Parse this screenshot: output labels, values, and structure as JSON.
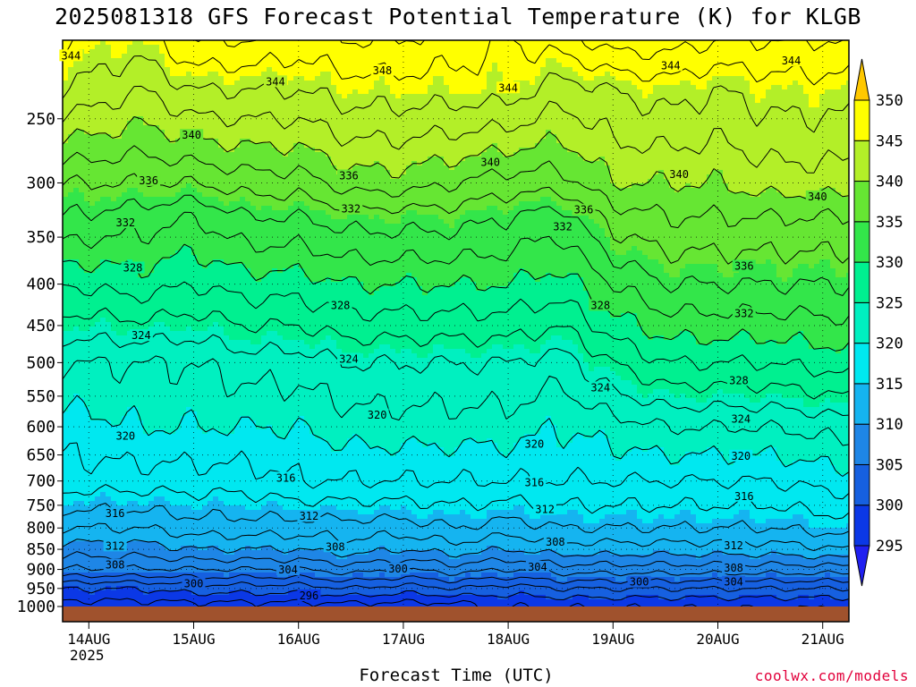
{
  "title": "2025081318 GFS Forecast Potential Temperature (K) for KLGB",
  "x_axis_title": "Forecast Time (UTC)",
  "credit": "coolwx.com/models",
  "chart_data": {
    "type": "heatmap",
    "title": "2025081318 GFS Forecast Potential Temperature (K) for KLGB",
    "xlabel": "Forecast Time (UTC)",
    "ylabel": "",
    "x_ticks": [
      {
        "label": "14AUG",
        "sub": "2025",
        "day": 0
      },
      {
        "label": "15AUG",
        "sub": "",
        "day": 1
      },
      {
        "label": "16AUG",
        "sub": "",
        "day": 2
      },
      {
        "label": "17AUG",
        "sub": "",
        "day": 3
      },
      {
        "label": "18AUG",
        "sub": "",
        "day": 4
      },
      {
        "label": "19AUG",
        "sub": "",
        "day": 5
      },
      {
        "label": "20AUG",
        "sub": "",
        "day": 6
      },
      {
        "label": "21AUG",
        "sub": "",
        "day": 7
      }
    ],
    "xlim_days": [
      -0.25,
      7.25
    ],
    "y_ticks": [
      250,
      300,
      350,
      400,
      450,
      500,
      550,
      600,
      650,
      700,
      750,
      800,
      850,
      900,
      950,
      1000
    ],
    "ylim": [
      200,
      1000
    ],
    "y_scale": "log-pressure",
    "colorbar": {
      "levels": [
        295,
        300,
        305,
        310,
        315,
        320,
        325,
        330,
        335,
        340,
        345,
        350
      ],
      "colors": [
        "#2020f0",
        "#0b38e6",
        "#1660e0",
        "#1e86e6",
        "#15b4f0",
        "#00e8f0",
        "#00f0c0",
        "#00f090",
        "#33e64a",
        "#66e633",
        "#b3ef28",
        "#ffff00",
        "#ffc800"
      ]
    },
    "isotherm_interval": 2,
    "profiles": [
      {
        "day": -0.25,
        "p": [
          200,
          230,
          300,
          330,
          400,
          500,
          600,
          700,
          800,
          850,
          900,
          950,
          1000
        ],
        "theta": [
          346,
          344,
          336,
          334,
          328,
          322,
          319,
          317,
          312,
          309,
          306,
          300,
          297
        ]
      },
      {
        "day": 0.5,
        "p": [
          200,
          230,
          300,
          330,
          400,
          500,
          600,
          700,
          800,
          850,
          900,
          950,
          1000
        ],
        "theta": [
          345,
          342,
          336,
          333,
          329,
          322,
          320,
          317,
          312,
          309,
          306,
          300,
          297
        ]
      },
      {
        "day": 1,
        "p": [
          200,
          230,
          300,
          330,
          400,
          500,
          600,
          700,
          800,
          850,
          900,
          950,
          1000
        ],
        "theta": [
          348,
          344,
          336,
          332,
          328,
          322,
          320,
          317,
          313,
          310,
          306,
          301,
          297
        ]
      },
      {
        "day": 1.5,
        "p": [
          200,
          230,
          300,
          330,
          400,
          500,
          600,
          700,
          800,
          850,
          900,
          950,
          1000
        ],
        "theta": [
          348,
          344,
          337,
          334,
          329,
          323,
          320,
          317,
          313,
          310,
          306,
          301,
          297
        ]
      },
      {
        "day": 2,
        "p": [
          200,
          230,
          300,
          330,
          400,
          500,
          600,
          700,
          800,
          850,
          900,
          950,
          1000
        ],
        "theta": [
          347,
          344,
          337,
          334,
          329,
          323,
          320,
          318,
          313,
          310,
          306,
          301,
          297
        ]
      },
      {
        "day": 2.5,
        "p": [
          200,
          230,
          300,
          330,
          400,
          500,
          600,
          700,
          800,
          850,
          900,
          950,
          1000
        ],
        "theta": [
          348,
          345,
          339,
          335,
          330,
          324,
          321,
          318,
          313,
          311,
          307,
          302,
          297
        ]
      },
      {
        "day": 3,
        "p": [
          200,
          230,
          300,
          330,
          400,
          500,
          600,
          700,
          800,
          850,
          900,
          950,
          1000
        ],
        "theta": [
          348,
          345,
          339,
          335,
          330,
          324,
          321,
          318,
          313,
          310,
          306,
          301,
          297
        ]
      },
      {
        "day": 3.5,
        "p": [
          200,
          230,
          300,
          330,
          400,
          500,
          600,
          700,
          800,
          850,
          900,
          950,
          1000
        ],
        "theta": [
          347,
          345,
          338,
          335,
          330,
          324,
          321,
          318,
          314,
          311,
          307,
          302,
          297
        ]
      },
      {
        "day": 4,
        "p": [
          200,
          230,
          300,
          330,
          400,
          500,
          600,
          700,
          800,
          850,
          900,
          950,
          1000
        ],
        "theta": [
          346,
          345,
          337,
          334,
          330,
          324,
          321,
          318,
          313,
          310,
          306,
          301,
          298
        ]
      },
      {
        "day": 4.5,
        "p": [
          200,
          230,
          300,
          330,
          400,
          500,
          600,
          700,
          800,
          850,
          900,
          950,
          1000
        ],
        "theta": [
          347,
          343,
          337,
          333,
          329,
          323,
          320,
          318,
          314,
          311,
          307,
          302,
          298
        ]
      },
      {
        "day": 5,
        "p": [
          200,
          230,
          300,
          330,
          400,
          500,
          600,
          700,
          800,
          850,
          900,
          950,
          1000
        ],
        "theta": [
          349,
          344,
          340,
          337,
          332,
          326,
          321,
          318,
          314,
          311,
          307,
          302,
          298
        ]
      },
      {
        "day": 5.5,
        "p": [
          200,
          230,
          300,
          330,
          400,
          500,
          600,
          700,
          800,
          850,
          900,
          950,
          1000
        ],
        "theta": [
          349,
          345,
          340,
          338,
          334,
          328,
          322,
          318,
          314,
          311,
          307,
          302,
          298
        ]
      },
      {
        "day": 6,
        "p": [
          200,
          230,
          300,
          330,
          400,
          500,
          600,
          700,
          800,
          850,
          900,
          950,
          1000
        ],
        "theta": [
          348,
          344,
          340,
          338,
          334,
          328,
          322,
          318,
          314,
          311,
          307,
          302,
          298
        ]
      },
      {
        "day": 6.5,
        "p": [
          200,
          230,
          300,
          330,
          400,
          500,
          600,
          700,
          800,
          850,
          900,
          950,
          1000
        ],
        "theta": [
          348,
          345,
          341,
          338,
          334,
          328,
          322,
          318,
          314,
          311,
          307,
          302,
          298
        ]
      },
      {
        "day": 7.25,
        "p": [
          200,
          230,
          300,
          330,
          400,
          500,
          600,
          700,
          800,
          850,
          900,
          950,
          1000
        ],
        "theta": [
          348,
          345,
          341,
          338,
          334,
          329,
          323,
          319,
          315,
          312,
          307,
          302,
          298
        ]
      }
    ],
    "contour_labels": [
      {
        "text": "344",
        "day": -0.17,
        "p": 209
      },
      {
        "text": "344",
        "day": 1.78,
        "p": 225
      },
      {
        "text": "348",
        "day": 2.8,
        "p": 218
      },
      {
        "text": "344",
        "day": 4.0,
        "p": 229
      },
      {
        "text": "344",
        "day": 5.55,
        "p": 215
      },
      {
        "text": "344",
        "day": 6.7,
        "p": 212
      },
      {
        "text": "340",
        "day": 0.98,
        "p": 262
      },
      {
        "text": "340",
        "day": 3.83,
        "p": 283
      },
      {
        "text": "340",
        "day": 5.63,
        "p": 293
      },
      {
        "text": "340",
        "day": 6.95,
        "p": 312
      },
      {
        "text": "336",
        "day": 0.57,
        "p": 298
      },
      {
        "text": "336",
        "day": 2.48,
        "p": 294
      },
      {
        "text": "336",
        "day": 4.72,
        "p": 324
      },
      {
        "text": "336",
        "day": 6.25,
        "p": 380
      },
      {
        "text": "332",
        "day": 0.35,
        "p": 336
      },
      {
        "text": "332",
        "day": 2.5,
        "p": 323
      },
      {
        "text": "332",
        "day": 4.52,
        "p": 340
      },
      {
        "text": "332",
        "day": 6.25,
        "p": 435
      },
      {
        "text": "328",
        "day": 0.42,
        "p": 382
      },
      {
        "text": "328",
        "day": 2.4,
        "p": 425
      },
      {
        "text": "328",
        "day": 4.88,
        "p": 425
      },
      {
        "text": "328",
        "day": 6.2,
        "p": 526
      },
      {
        "text": "324",
        "day": 0.5,
        "p": 463
      },
      {
        "text": "324",
        "day": 2.48,
        "p": 495
      },
      {
        "text": "324",
        "day": 4.88,
        "p": 537
      },
      {
        "text": "324",
        "day": 6.22,
        "p": 587
      },
      {
        "text": "320",
        "day": 0.35,
        "p": 616
      },
      {
        "text": "320",
        "day": 2.75,
        "p": 580
      },
      {
        "text": "320",
        "day": 4.25,
        "p": 630
      },
      {
        "text": "320",
        "day": 6.22,
        "p": 652
      },
      {
        "text": "316",
        "day": 0.25,
        "p": 768
      },
      {
        "text": "316",
        "day": 1.88,
        "p": 694
      },
      {
        "text": "316",
        "day": 4.25,
        "p": 703
      },
      {
        "text": "316",
        "day": 6.25,
        "p": 731
      },
      {
        "text": "312",
        "day": 0.25,
        "p": 842
      },
      {
        "text": "312",
        "day": 2.1,
        "p": 774
      },
      {
        "text": "312",
        "day": 4.35,
        "p": 759
      },
      {
        "text": "312",
        "day": 6.15,
        "p": 841
      },
      {
        "text": "308",
        "day": 0.25,
        "p": 889
      },
      {
        "text": "308",
        "day": 2.35,
        "p": 844
      },
      {
        "text": "308",
        "day": 4.45,
        "p": 833
      },
      {
        "text": "308",
        "day": 6.15,
        "p": 897
      },
      {
        "text": "304",
        "day": 1.9,
        "p": 901
      },
      {
        "text": "304",
        "day": 4.28,
        "p": 894
      },
      {
        "text": "304",
        "day": 6.15,
        "p": 933
      },
      {
        "text": "300",
        "day": 1.0,
        "p": 937
      },
      {
        "text": "300",
        "day": 2.95,
        "p": 899
      },
      {
        "text": "300",
        "day": 5.25,
        "p": 933
      },
      {
        "text": "296",
        "day": 2.1,
        "p": 970
      }
    ]
  }
}
